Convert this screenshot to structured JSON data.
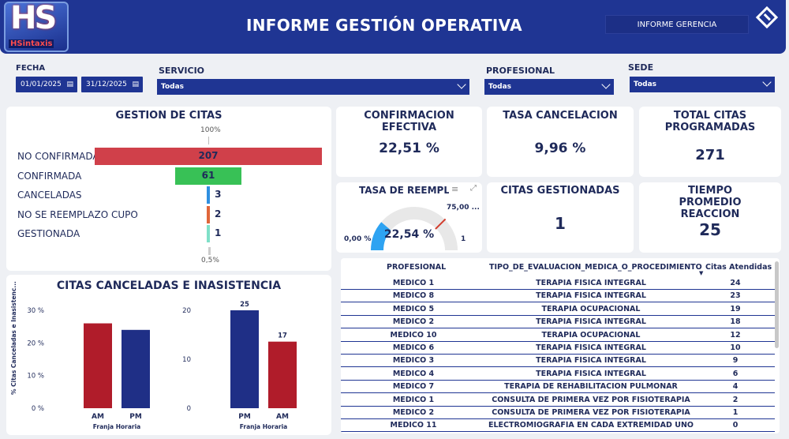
{
  "header": {
    "logo_text": "HS",
    "logo_sub": "HSintaxis",
    "title": "INFORME GESTIÓN OPERATIVA",
    "gerencia_button": "INFORME GERENCIA"
  },
  "filters": {
    "fecha_label": "FECHA",
    "date_from": "01/01/2025",
    "date_to": "31/12/2025",
    "servicio_label": "SERVICIO",
    "servicio_value": "Todas",
    "profesional_label": "PROFESIONAL",
    "profesional_value": "Todas",
    "sede_label": "SEDE",
    "sede_value": "Todas"
  },
  "gestion": {
    "title": "GESTION DE CITAS",
    "top_pct": "100%",
    "bottom_pct": "0,5%",
    "rows": [
      {
        "label": "NO CONFIRMADA",
        "value": "207",
        "color": "#d0404a"
      },
      {
        "label": "CONFIRMADA",
        "value": "61",
        "color": "#38c156"
      },
      {
        "label": "CANCELADAS",
        "value": "3",
        "color": "#2f8fe0"
      },
      {
        "label": "NO SE REEMPLAZO CUPO",
        "value": "2",
        "color": "#e0663a"
      },
      {
        "label": "GESTIONADA",
        "value": "1",
        "color": "#7fe0c8"
      }
    ]
  },
  "kpis": {
    "confirmacion_title": "CONFIRMACION EFECTIVA",
    "confirmacion_value": "22,51 %",
    "cancelacion_title": "TASA CANCELACION",
    "cancelacion_value": "9,96 %",
    "total_title": "TOTAL CITAS PROGRAMADAS",
    "total_value": "271",
    "gestionadas_title": "CITAS GESTIONADAS",
    "gestionadas_value": "1",
    "tiempo_title": "TIEMPO PROMEDIO REACCION",
    "tiempo_value": "25"
  },
  "gauge": {
    "title": "TASA DE REEMPLAZ",
    "value": "22,54 %",
    "min": "0,00 %",
    "max": "1",
    "target": "75,00 ...",
    "fraction": 0.2254,
    "color": "#2ea3f2"
  },
  "canceladas": {
    "title": "CITAS CANCELADAS E INASISTENCIA",
    "ylabel": "% Citas Canceladas e Inasistenc...",
    "xlabel": "Franja Horaria",
    "chart_data": [
      {
        "type": "bar",
        "categories": [
          "AM",
          "PM"
        ],
        "values": [
          26,
          24
        ],
        "yticks": [
          "30 %",
          "20 %",
          "10 %",
          "0 %"
        ],
        "ylim": [
          0,
          30
        ],
        "xlabel": "Franja Horaria",
        "ylabel": "% Citas Canceladas e Inasistenc...",
        "colors": [
          "#b01c2a",
          "#1f2f86"
        ]
      },
      {
        "type": "bar",
        "categories": [
          "PM",
          "AM"
        ],
        "values": [
          25,
          17
        ],
        "data_labels": [
          "25",
          "17"
        ],
        "yticks": [
          "20",
          "10",
          "0"
        ],
        "ylim": [
          0,
          25
        ],
        "xlabel": "Franja Horaria",
        "colors": [
          "#1f2f86",
          "#b01c2a"
        ]
      }
    ]
  },
  "table": {
    "headers": [
      "PROFESIONAL",
      "TIPO_DE_EVALUACION_MEDICA_O_PROCEDIMIENTO",
      "Citas Atendidas"
    ],
    "rows": [
      [
        "MEDICO 1",
        "TERAPIA FÍSICA INTEGRAL",
        "24"
      ],
      [
        "MEDICO 8",
        "TERAPIA FÍSICA INTEGRAL",
        "23"
      ],
      [
        "MEDICO 5",
        "TERAPIA OCUPACIONAL",
        "19"
      ],
      [
        "MEDICO 2",
        "TERAPIA FÍSICA INTEGRAL",
        "18"
      ],
      [
        "MEDICO 10",
        "TERAPIA OCUPACIONAL",
        "12"
      ],
      [
        "MEDICO 6",
        "TERAPIA FÍSICA INTEGRAL",
        "10"
      ],
      [
        "MEDICO 3",
        "TERAPIA FÍSICA INTEGRAL",
        "9"
      ],
      [
        "MEDICO 4",
        "TERAPIA FÍSICA INTEGRAL",
        "6"
      ],
      [
        "MEDICO 7",
        "TERAPIA DE REHABILITACIÓN PULMONAR",
        "4"
      ],
      [
        "MEDICO 1",
        "CONSULTA DE PRIMERA VEZ POR FISIOTERAPIA",
        "2"
      ],
      [
        "MEDICO 2",
        "CONSULTA DE PRIMERA VEZ POR FISIOTERAPIA",
        "1"
      ],
      [
        "MEDICO 11",
        "ELECTROMIOGRAFÍA EN CADA EXTREMIDAD UNO O",
        "0"
      ]
    ]
  }
}
